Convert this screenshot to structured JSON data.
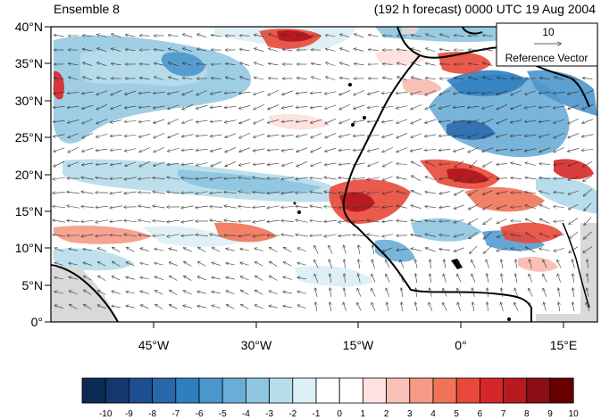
{
  "titles": {
    "left": "Ensemble 8",
    "right": "(192 h forecast) 0000 UTC 19 Aug 2004"
  },
  "map": {
    "lat_labels": [
      "40°N",
      "35°N",
      "30°N",
      "25°N",
      "20°N",
      "15°N",
      "10°N",
      "5°N",
      "0°"
    ],
    "lon_labels": [
      "45°W",
      "30°W",
      "15°W",
      "0°",
      "15°E"
    ],
    "lat_range": [
      0,
      40
    ],
    "lon_range": [
      -60,
      20
    ]
  },
  "reference_vector": {
    "value": "10",
    "label": "Reference Vector"
  },
  "colorbar": {
    "labels": [
      "-10",
      "-9",
      "-8",
      "-7",
      "-6",
      "-5",
      "-4",
      "-3",
      "-2",
      "-1",
      "0",
      "1",
      "2",
      "3",
      "4",
      "5",
      "6",
      "7",
      "8",
      "9",
      "10"
    ],
    "colors": [
      "#0a2a55",
      "#14376d",
      "#1d4e8f",
      "#2767aa",
      "#2f7ebf",
      "#4b96cc",
      "#6aadd6",
      "#8ec5df",
      "#b8ddea",
      "#def0f6",
      "#ffffff",
      "#ffffff",
      "#fde2e0",
      "#f9c0b5",
      "#f59a86",
      "#f07358",
      "#e8483a",
      "#d62728",
      "#b81b1f",
      "#8c0f16",
      "#660000"
    ]
  }
}
